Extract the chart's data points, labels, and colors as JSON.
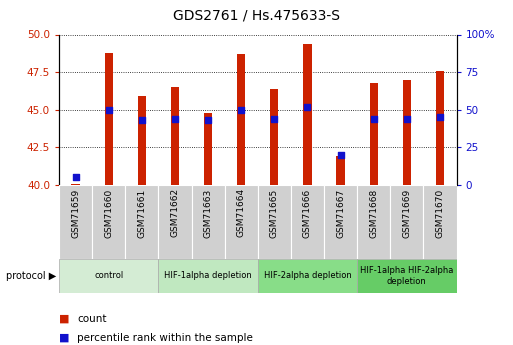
{
  "title": "GDS2761 / Hs.475633-S",
  "samples": [
    "GSM71659",
    "GSM71660",
    "GSM71661",
    "GSM71662",
    "GSM71663",
    "GSM71664",
    "GSM71665",
    "GSM71666",
    "GSM71667",
    "GSM71668",
    "GSM71669",
    "GSM71670"
  ],
  "counts": [
    40.05,
    48.8,
    45.9,
    46.5,
    44.8,
    48.7,
    46.4,
    49.4,
    41.9,
    46.8,
    47.0,
    47.6
  ],
  "percentile_ranks": [
    5,
    50,
    43,
    44,
    43,
    50,
    44,
    52,
    20,
    44,
    44,
    45
  ],
  "y_min": 40,
  "y_max": 50,
  "yticks_left": [
    40,
    42.5,
    45,
    47.5,
    50
  ],
  "yticks_right": [
    0,
    25,
    50,
    75,
    100
  ],
  "bar_color": "#cc2200",
  "dot_color": "#1111cc",
  "bar_bottom": 40,
  "protocol_groups": [
    {
      "label": "control",
      "start": 0,
      "end": 3,
      "color": "#d4ecd4"
    },
    {
      "label": "HIF-1alpha depletion",
      "start": 3,
      "end": 6,
      "color": "#c0e8c0"
    },
    {
      "label": "HIF-2alpha depletion",
      "start": 6,
      "end": 9,
      "color": "#88dd88"
    },
    {
      "label": "HIF-1alpha HIF-2alpha\ndepletion",
      "start": 9,
      "end": 12,
      "color": "#66cc66"
    }
  ],
  "legend_count_color": "#cc2200",
  "legend_dot_color": "#1111cc",
  "bg_plot_color": "#ffffff",
  "xlabel_bg_color": "#d0d0d0",
  "right_axis_label": "100%"
}
